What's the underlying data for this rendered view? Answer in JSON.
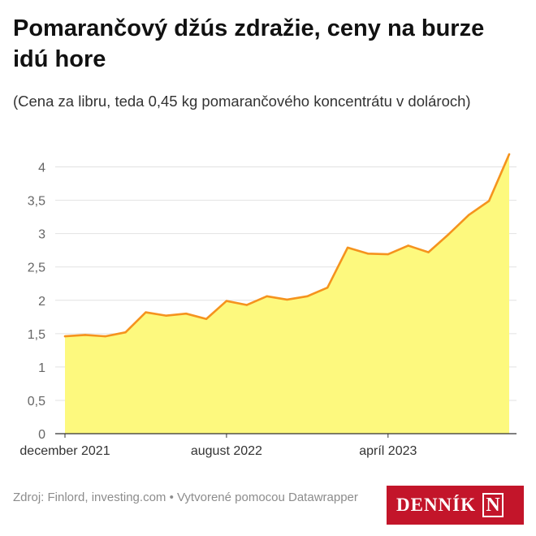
{
  "header": {
    "title": "Pomarančový džús zdražie, ceny na burze idú hore",
    "subtitle": "(Cena za libru, teda 0,45 kg pomarančového koncentrátu v dolároch)"
  },
  "chart_data": {
    "type": "area",
    "x": [
      "2021-12",
      "2022-01",
      "2022-02",
      "2022-03",
      "2022-04",
      "2022-05",
      "2022-06",
      "2022-07",
      "2022-08",
      "2022-09",
      "2022-10",
      "2022-11",
      "2022-12",
      "2023-01",
      "2023-02",
      "2023-03",
      "2023-04",
      "2023-05",
      "2023-06",
      "2023-07",
      "2023-08",
      "2023-09",
      "2023-10"
    ],
    "values": [
      1.46,
      1.48,
      1.46,
      1.52,
      1.82,
      1.77,
      1.8,
      1.72,
      1.99,
      1.93,
      2.06,
      2.01,
      2.06,
      2.19,
      2.79,
      2.7,
      2.69,
      2.82,
      2.72,
      2.99,
      3.28,
      3.49,
      4.19
    ],
    "x_tick_labels": [
      "december 2021",
      "august 2022",
      "apríl 2023"
    ],
    "x_tick_positions": [
      "2021-12",
      "2022-08",
      "2023-04"
    ],
    "y_ticks": [
      0,
      0.5,
      1,
      1.5,
      2,
      2.5,
      3,
      3.5,
      4
    ],
    "y_tick_labels": [
      "0",
      "0,5",
      "1",
      "1,5",
      "2",
      "2,5",
      "3",
      "3,5",
      "4"
    ],
    "ylim": [
      0,
      4.25
    ],
    "grid": true,
    "colors": {
      "line": "#f5931e",
      "fill": "#fdf97e",
      "grid": "#e2e2e2",
      "axis": "#333333",
      "tick_text": "#666666"
    }
  },
  "footer": {
    "source": "Zdroj: Finlord, investing.com • Vytvorené pomocou Datawrapper"
  },
  "logo": {
    "text": "DENNÍK",
    "mark": "N",
    "color": "#c3152a"
  }
}
